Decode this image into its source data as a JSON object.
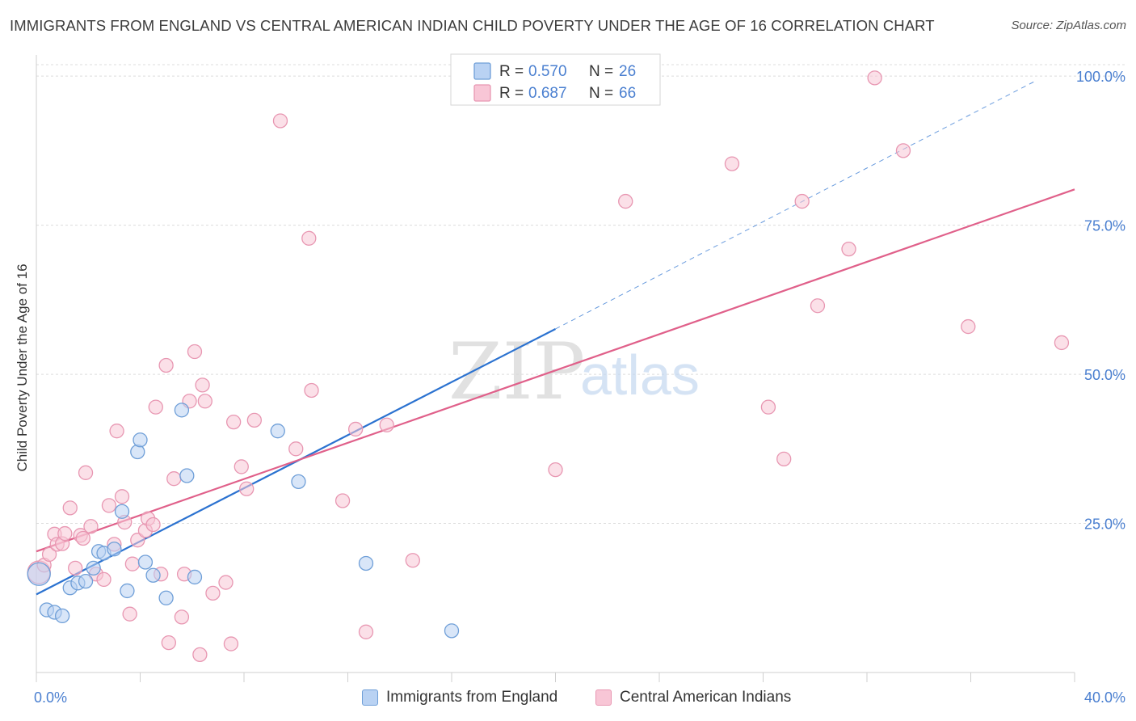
{
  "header": {
    "title": "IMMIGRANTS FROM ENGLAND VS CENTRAL AMERICAN INDIAN CHILD POVERTY UNDER THE AGE OF 16 CORRELATION CHART",
    "source": "Source: ZipAtlas.com"
  },
  "watermark": {
    "zip": "ZIP",
    "atlas": "atlas"
  },
  "colors": {
    "blue_fill": "#b9d2f3",
    "blue_stroke": "#6f9fd8",
    "blue_line": "#2b72d0",
    "pink_fill": "#f8c6d6",
    "pink_stroke": "#e897b2",
    "pink_line": "#e0608a",
    "tick_label": "#4a7fd0",
    "grid": "#dcdcdc"
  },
  "chart_data": {
    "type": "scatter",
    "title": "IMMIGRANTS FROM ENGLAND VS CENTRAL AMERICAN INDIAN CHILD POVERTY UNDER THE AGE OF 16 CORRELATION CHART",
    "xlabel": "",
    "ylabel": "Child Poverty Under the Age of 16",
    "xlim": [
      0,
      40
    ],
    "ylim": [
      0,
      103
    ],
    "x_tick_labels": [
      "0.0%",
      "40.0%"
    ],
    "y_ticks": [
      25,
      50,
      75,
      100
    ],
    "y_tick_labels": [
      "25.0%",
      "50.0%",
      "75.0%",
      "100.0%"
    ],
    "grid": true,
    "legend_position": "top-center",
    "stats": [
      {
        "r_label": "R =",
        "r": "0.570",
        "n_label": "N =",
        "n": "26"
      },
      {
        "r_label": "R =",
        "r": "0.687",
        "n_label": "N =",
        "n": "66"
      }
    ],
    "series": [
      {
        "name": "Immigrants from England",
        "color": "blue",
        "points": [
          [
            0.1,
            16.5
          ],
          [
            0.4,
            10.5
          ],
          [
            0.7,
            10.1
          ],
          [
            1.0,
            9.5
          ],
          [
            1.3,
            14.2
          ],
          [
            1.6,
            15.0
          ],
          [
            1.9,
            15.3
          ],
          [
            2.2,
            17.5
          ],
          [
            2.4,
            20.3
          ],
          [
            2.6,
            20.0
          ],
          [
            3.0,
            20.7
          ],
          [
            3.3,
            27.0
          ],
          [
            3.5,
            13.7
          ],
          [
            3.9,
            37.0
          ],
          [
            4.0,
            39.0
          ],
          [
            4.2,
            18.5
          ],
          [
            4.5,
            16.3
          ],
          [
            5.0,
            12.5
          ],
          [
            5.6,
            44.0
          ],
          [
            5.8,
            33.0
          ],
          [
            6.1,
            16.0
          ],
          [
            9.3,
            40.5
          ],
          [
            10.1,
            32.0
          ],
          [
            12.7,
            18.3
          ],
          [
            16.0,
            7.0
          ],
          [
            18.6,
            99.0
          ]
        ],
        "trend": {
          "x": [
            0,
            20
          ],
          "y": [
            13.1,
            57.6
          ],
          "dashed_to": {
            "x": [
              20,
              38.5
            ],
            "y": [
              57.6,
              99.2
            ]
          }
        }
      },
      {
        "name": "Central American Indians",
        "color": "pink",
        "points": [
          [
            0.1,
            16.8
          ],
          [
            0.3,
            18.0
          ],
          [
            0.5,
            19.8
          ],
          [
            0.7,
            23.2
          ],
          [
            0.8,
            21.5
          ],
          [
            1.0,
            21.6
          ],
          [
            1.1,
            23.3
          ],
          [
            1.3,
            27.6
          ],
          [
            1.5,
            17.5
          ],
          [
            1.7,
            23.0
          ],
          [
            1.8,
            22.5
          ],
          [
            1.9,
            33.5
          ],
          [
            2.1,
            24.5
          ],
          [
            2.3,
            16.5
          ],
          [
            2.6,
            15.6
          ],
          [
            2.8,
            28.0
          ],
          [
            3.0,
            21.5
          ],
          [
            3.1,
            40.5
          ],
          [
            3.3,
            29.5
          ],
          [
            3.4,
            25.2
          ],
          [
            3.6,
            9.8
          ],
          [
            3.7,
            18.2
          ],
          [
            3.9,
            22.2
          ],
          [
            4.2,
            23.8
          ],
          [
            4.3,
            25.8
          ],
          [
            4.5,
            24.8
          ],
          [
            4.6,
            44.5
          ],
          [
            4.8,
            16.5
          ],
          [
            5.0,
            51.5
          ],
          [
            5.1,
            5.0
          ],
          [
            5.3,
            32.5
          ],
          [
            5.6,
            9.3
          ],
          [
            5.7,
            16.5
          ],
          [
            5.9,
            45.5
          ],
          [
            6.1,
            53.8
          ],
          [
            6.3,
            3.0
          ],
          [
            6.4,
            48.2
          ],
          [
            6.5,
            45.5
          ],
          [
            6.8,
            13.3
          ],
          [
            7.3,
            15.1
          ],
          [
            7.5,
            4.8
          ],
          [
            7.6,
            42.0
          ],
          [
            7.9,
            34.5
          ],
          [
            8.1,
            30.8
          ],
          [
            8.4,
            42.3
          ],
          [
            9.4,
            92.5
          ],
          [
            10.0,
            37.5
          ],
          [
            10.5,
            72.8
          ],
          [
            10.6,
            47.3
          ],
          [
            11.8,
            28.8
          ],
          [
            12.3,
            40.8
          ],
          [
            12.7,
            6.8
          ],
          [
            13.5,
            41.5
          ],
          [
            14.5,
            18.8
          ],
          [
            22.7,
            79.0
          ],
          [
            26.8,
            85.3
          ],
          [
            28.2,
            44.5
          ],
          [
            28.8,
            35.8
          ],
          [
            29.5,
            79.0
          ],
          [
            30.1,
            61.5
          ],
          [
            31.3,
            71.0
          ],
          [
            32.3,
            99.7
          ],
          [
            33.4,
            87.5
          ],
          [
            35.9,
            58.0
          ],
          [
            39.5,
            55.3
          ],
          [
            20.0,
            34.0
          ]
        ],
        "trend": {
          "x": [
            0,
            40
          ],
          "y": [
            20.3,
            81.0
          ]
        }
      }
    ]
  }
}
